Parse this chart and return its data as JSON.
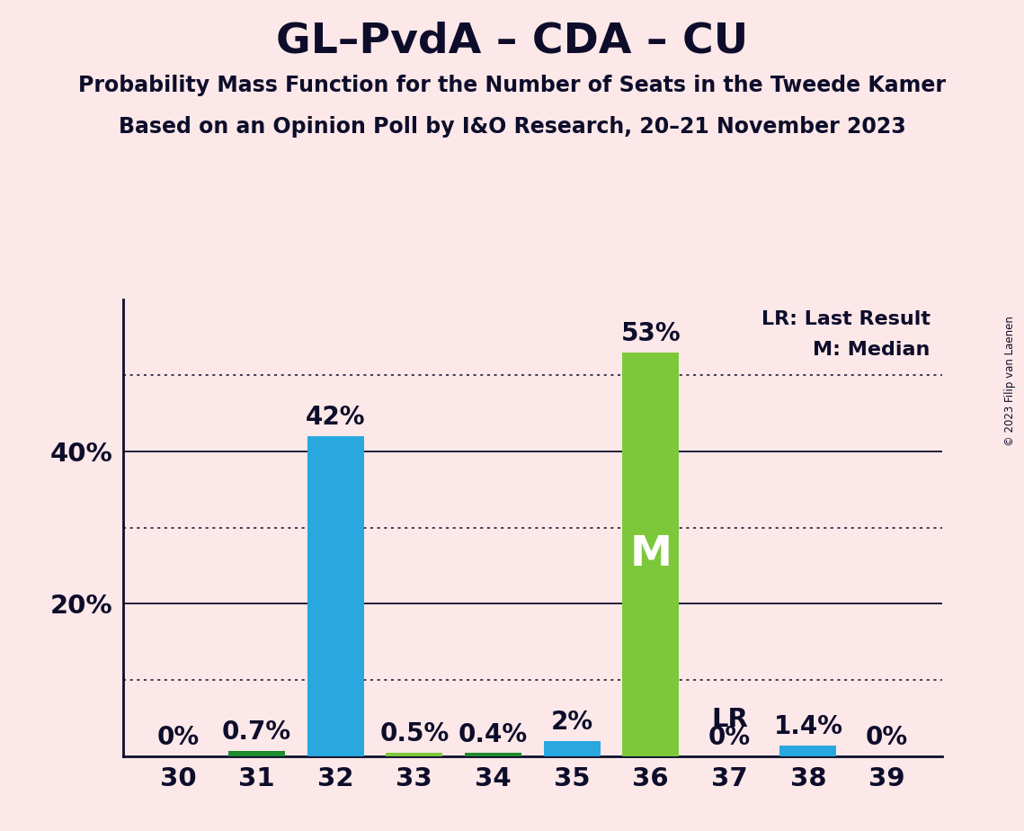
{
  "title": "GL–PvdA – CDA – CU",
  "subtitle1": "Probability Mass Function for the Number of Seats in the Tweede Kamer",
  "subtitle2": "Based on an Opinion Poll by I&O Research, 20–21 November 2023",
  "copyright": "© 2023 Filip van Laenen",
  "seats": [
    30,
    31,
    32,
    33,
    34,
    35,
    36,
    37,
    38,
    39
  ],
  "values": [
    0.0,
    0.7,
    42.0,
    0.5,
    0.4,
    2.0,
    53.0,
    0.0,
    1.4,
    0.0
  ],
  "labels": [
    "0%",
    "0.7%",
    "42%",
    "0.5%",
    "0.4%",
    "2%",
    "53%",
    "0%",
    "1.4%",
    "0%"
  ],
  "bar_colors": [
    "#29a8e0",
    "#1e8c2e",
    "#29a8e0",
    "#7dc83a",
    "#1e8c2e",
    "#29a8e0",
    "#7dc83a",
    "#29a8e0",
    "#29a8e0",
    "#29a8e0"
  ],
  "median_seat": 36,
  "lr_seat": 37,
  "background_color": "#fce8e8",
  "ylim": [
    0,
    60
  ],
  "solid_grid": [
    20,
    40
  ],
  "dotted_grid": [
    10,
    30,
    50
  ],
  "bar_width": 0.72,
  "title_fontsize": 34,
  "subtitle_fontsize": 17,
  "axis_fontsize": 21,
  "label_fontsize": 20,
  "legend_fontsize": 16,
  "m_fontsize": 34,
  "lr_fontsize": 21
}
